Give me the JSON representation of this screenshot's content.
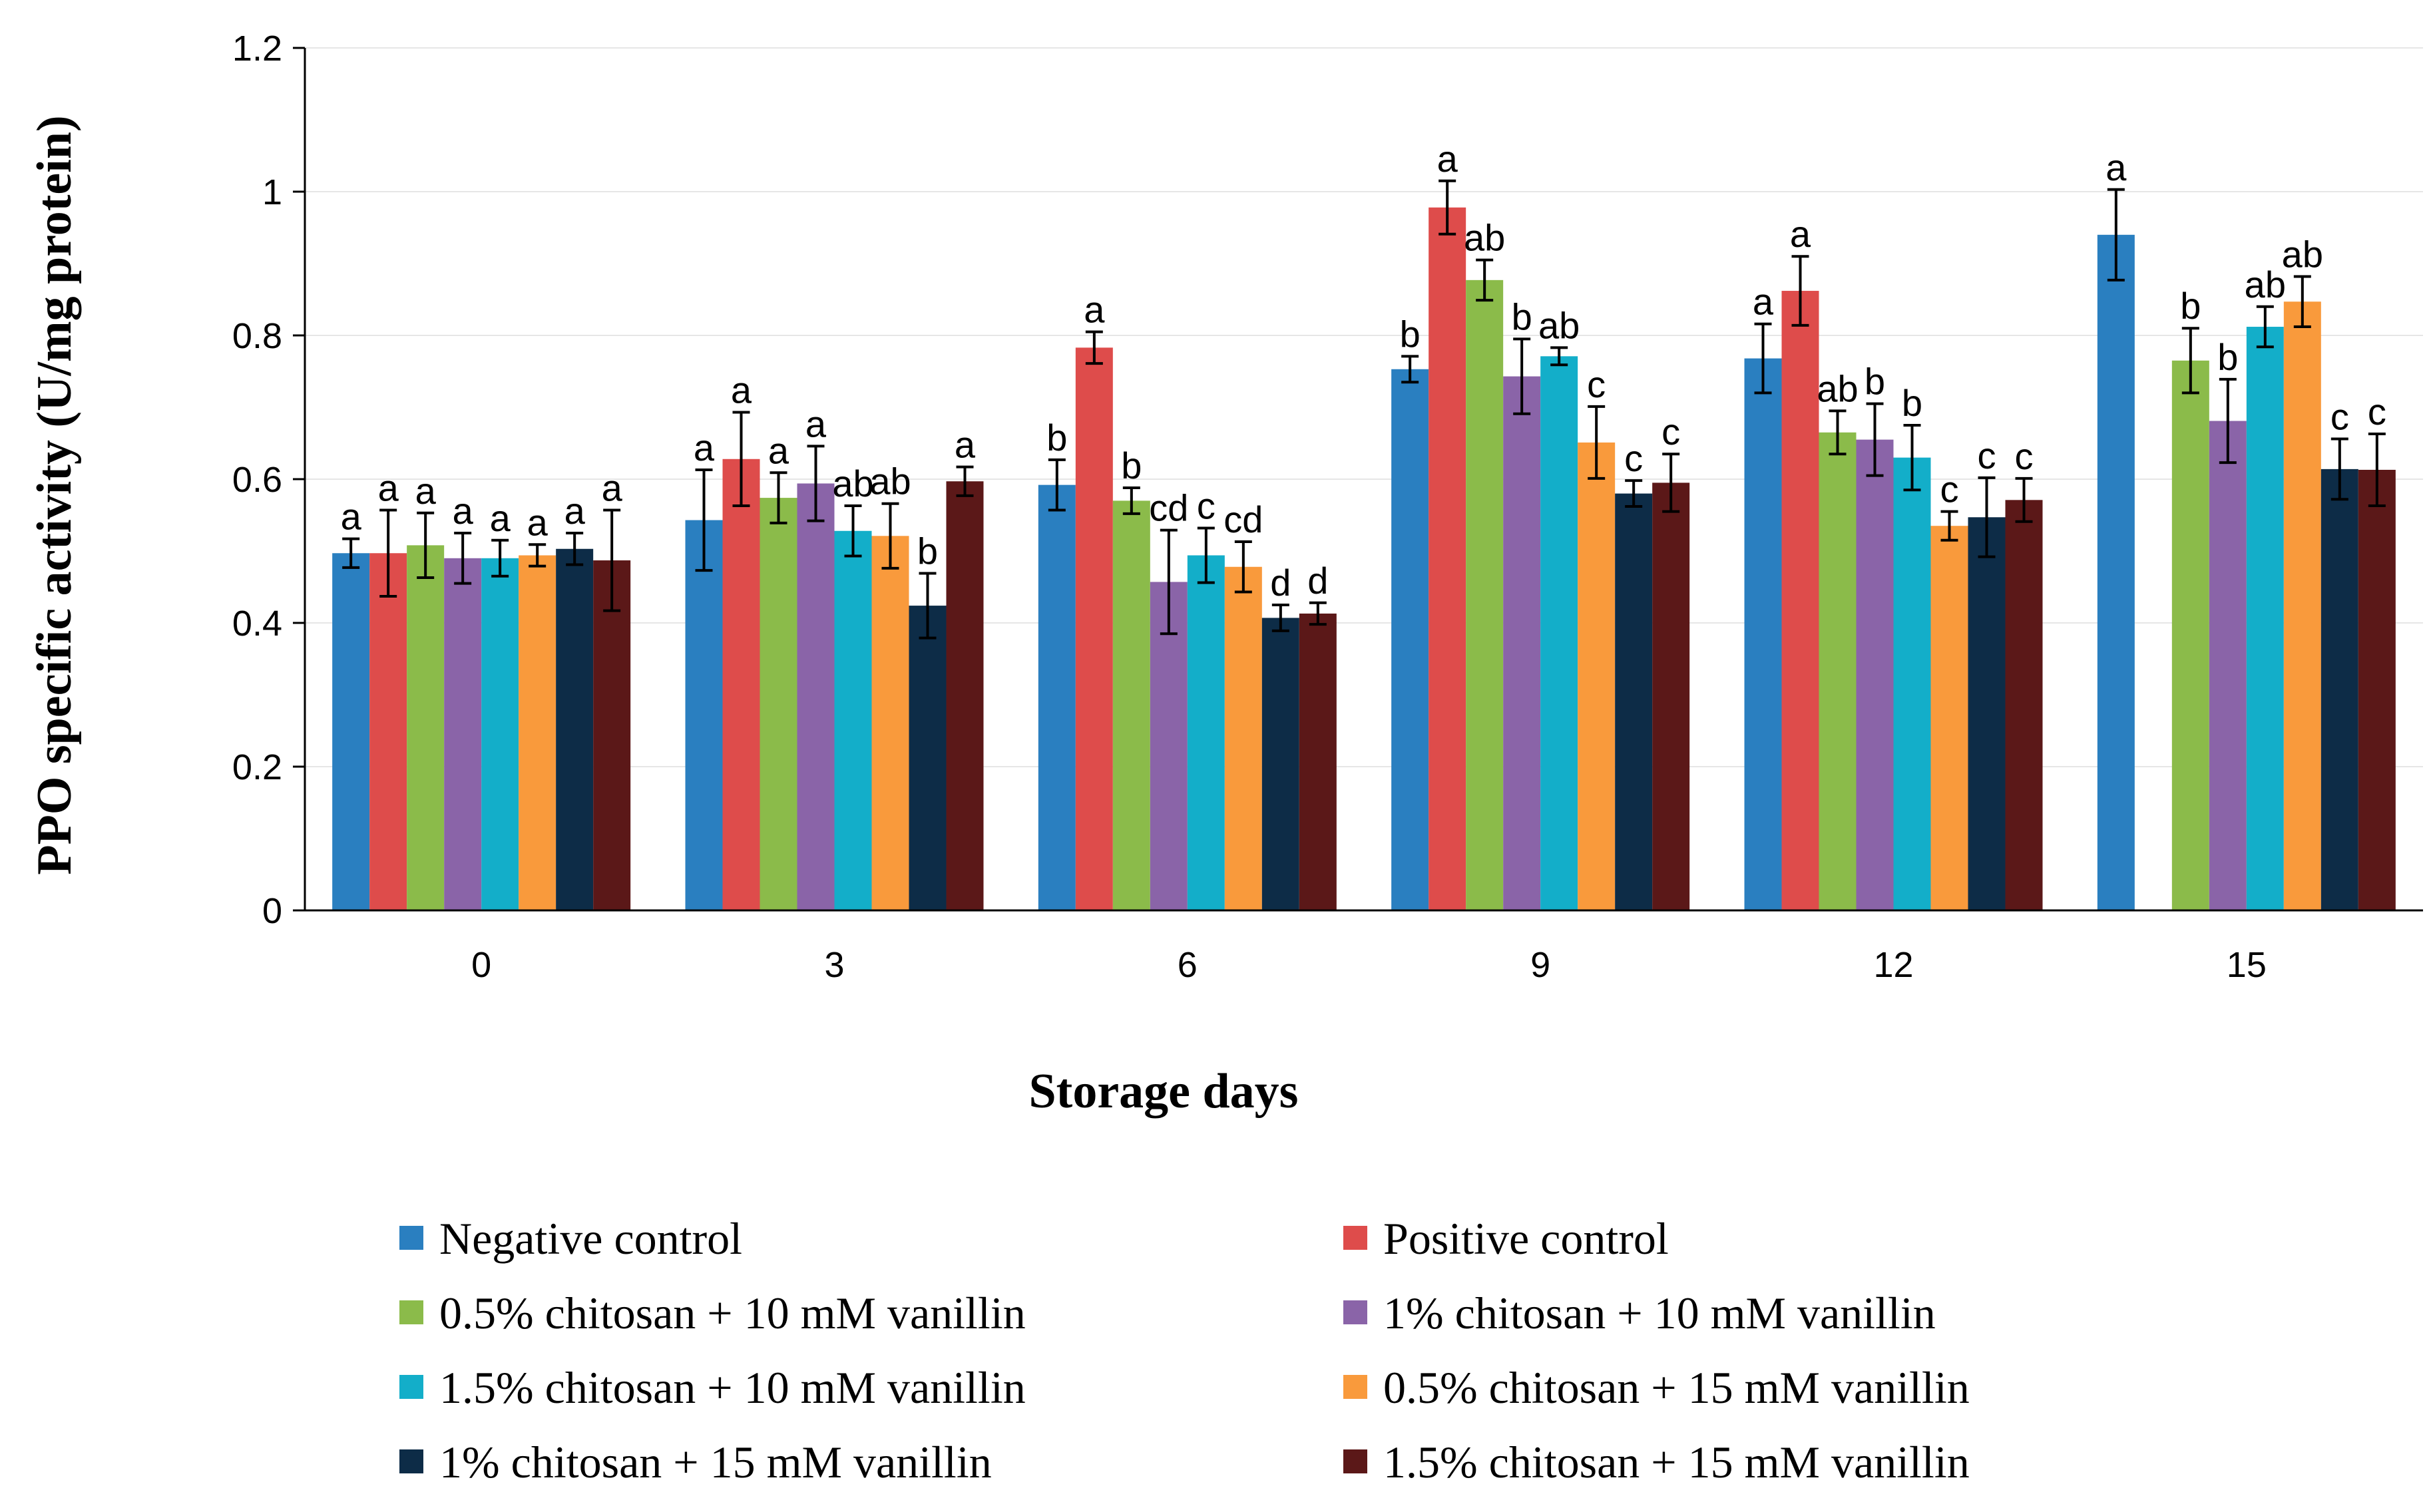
{
  "chart_data": {
    "type": "bar",
    "title": "",
    "xlabel": "Storage days",
    "ylabel": "PPO specific activity (U/mg protein)",
    "ylim": [
      0,
      1.2
    ],
    "yticks": [
      "0",
      "0.2",
      "0.4",
      "0.6",
      "0.8",
      "1",
      "1.2"
    ],
    "grid": true,
    "legend_position": "bottom",
    "categories": [
      "0",
      "3",
      "6",
      "9",
      "12",
      "15"
    ],
    "series": [
      {
        "name": "Negative control",
        "color": "#2a7fc0",
        "values": [
          0.497,
          0.543,
          0.592,
          0.753,
          0.768,
          0.94
        ],
        "errors": [
          0.02,
          0.07,
          0.035,
          0.018,
          0.048,
          0.063
        ],
        "letters": [
          "a",
          "a",
          "b",
          "b",
          "a",
          "a"
        ]
      },
      {
        "name": "Positive control",
        "color": "#de4c4b",
        "values": [
          0.497,
          0.628,
          0.783,
          0.978,
          0.862,
          null
        ],
        "errors": [
          0.06,
          0.065,
          0.022,
          0.037,
          0.048,
          null
        ],
        "letters": [
          "a",
          "a",
          "a",
          "a",
          "a",
          ""
        ]
      },
      {
        "name": "0.5% chitosan + 10 mM vanillin",
        "color": "#8bbb4a",
        "values": [
          0.508,
          0.574,
          0.57,
          0.877,
          0.665,
          0.765
        ],
        "errors": [
          0.045,
          0.035,
          0.018,
          0.028,
          0.03,
          0.045
        ],
        "letters": [
          "a",
          "a",
          "b",
          "ab",
          "ab",
          "b"
        ]
      },
      {
        "name": "1% chitosan + 10 mM vanillin",
        "color": "#8a64a8",
        "values": [
          0.49,
          0.594,
          0.457,
          0.743,
          0.655,
          0.681
        ],
        "errors": [
          0.035,
          0.052,
          0.072,
          0.052,
          0.05,
          0.058
        ],
        "letters": [
          "a",
          "a",
          "cd",
          "b",
          "b",
          "b"
        ]
      },
      {
        "name": "1.5% chitosan + 10 mM vanillin",
        "color": "#13aec9",
        "values": [
          0.49,
          0.528,
          0.494,
          0.771,
          0.63,
          0.812
        ],
        "errors": [
          0.025,
          0.035,
          0.038,
          0.012,
          0.045,
          0.028
        ],
        "letters": [
          "a",
          "ab",
          "c",
          "ab",
          "b",
          "ab"
        ]
      },
      {
        "name": "0.5% chitosan + 15 mM vanillin",
        "color": "#f99a3c",
        "values": [
          0.494,
          0.521,
          0.478,
          0.651,
          0.535,
          0.847
        ],
        "errors": [
          0.015,
          0.045,
          0.035,
          0.05,
          0.02,
          0.035
        ],
        "letters": [
          "a",
          "ab",
          "cd",
          "c",
          "c",
          "ab"
        ]
      },
      {
        "name": "1% chitosan + 15 mM vanillin",
        "color": "#0d2c47",
        "values": [
          0.503,
          0.424,
          0.407,
          0.58,
          0.547,
          0.614
        ],
        "errors": [
          0.022,
          0.045,
          0.018,
          0.018,
          0.055,
          0.042
        ],
        "letters": [
          "a",
          "b",
          "d",
          "c",
          "c",
          "c"
        ]
      },
      {
        "name": "1.5% chitosan + 15 mM vanillin",
        "color": "#5b1818",
        "values": [
          0.487,
          0.597,
          0.413,
          0.595,
          0.571,
          0.613
        ],
        "errors": [
          0.07,
          0.02,
          0.015,
          0.04,
          0.03,
          0.05
        ],
        "letters": [
          "a",
          "a",
          "d",
          "c",
          "c",
          "c"
        ]
      }
    ]
  }
}
